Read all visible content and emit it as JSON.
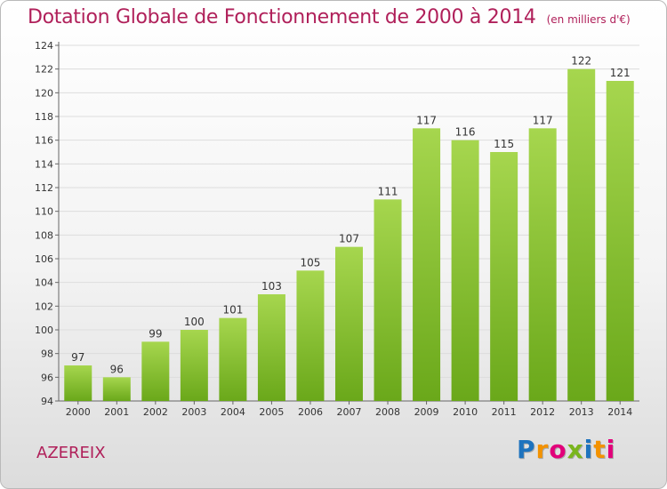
{
  "header": {
    "title": "Dotation Globale de Fonctionnement de 2000 à 2014",
    "subtitle": "(en milliers d'€)"
  },
  "commune": "AZEREIX",
  "logo": {
    "text": "Proxiti",
    "letters": [
      {
        "ch": "P",
        "color": "#1e73be"
      },
      {
        "ch": "r",
        "color": "#f39200"
      },
      {
        "ch": "o",
        "color": "#e2007a"
      },
      {
        "ch": "x",
        "color": "#7ab51d"
      },
      {
        "ch": "i",
        "color": "#1e73be"
      },
      {
        "ch": "t",
        "color": "#f39200"
      },
      {
        "ch": "i",
        "color": "#e2007a"
      }
    ]
  },
  "colors": {
    "title": "#b0205a",
    "bar_top": "#a6d64e",
    "bar_bottom": "#6aa81a",
    "grid": "#dddddd"
  },
  "chart_data": {
    "type": "bar",
    "title": "Dotation Globale de Fonctionnement de 2000 à 2014",
    "subtitle": "(en milliers d'€)",
    "categories": [
      "2000",
      "2001",
      "2002",
      "2003",
      "2004",
      "2005",
      "2006",
      "2007",
      "2008",
      "2009",
      "2010",
      "2011",
      "2012",
      "2013",
      "2014"
    ],
    "values": [
      97,
      96,
      99,
      100,
      101,
      103,
      105,
      107,
      111,
      117,
      116,
      115,
      117,
      122,
      121
    ],
    "ylim": [
      94,
      124
    ],
    "yticks": [
      94,
      96,
      98,
      100,
      102,
      104,
      106,
      108,
      110,
      112,
      114,
      116,
      118,
      120,
      122,
      124
    ],
    "xlabel": "",
    "ylabel": "",
    "grid": true
  }
}
